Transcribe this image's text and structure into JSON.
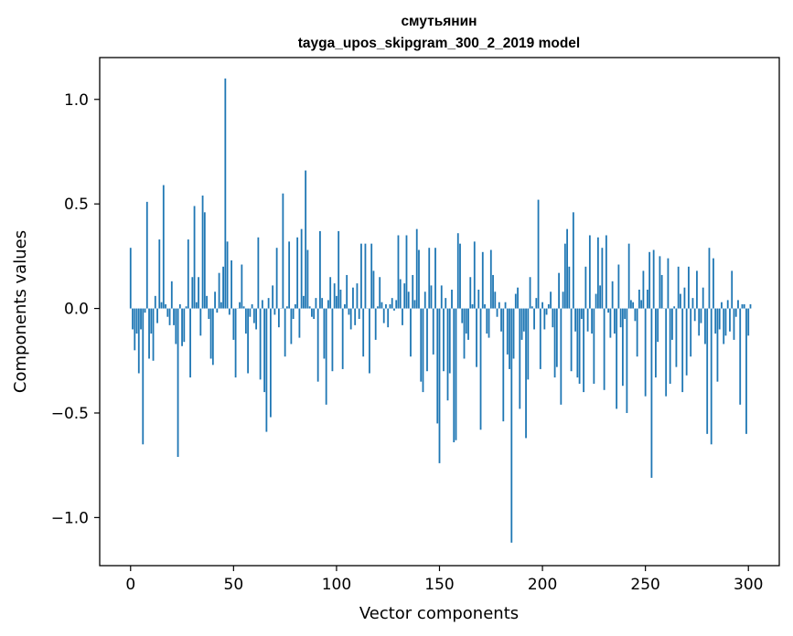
{
  "chart_data": {
    "type": "bar",
    "title": "смутьянин",
    "subtitle": "tayga_upos_skipgram_300_2_2019 model",
    "xlabel": "Vector components",
    "ylabel": "Components values",
    "xlim": [
      -15,
      315
    ],
    "ylim": [
      -1.23,
      1.2
    ],
    "xticks": [
      0,
      50,
      100,
      150,
      200,
      250,
      300
    ],
    "xtick_labels": [
      "0",
      "50",
      "100",
      "150",
      "200",
      "250",
      "300"
    ],
    "yticks": [
      -1.0,
      -0.5,
      0.0,
      0.5,
      1.0
    ],
    "ytick_labels": [
      "−1.0",
      "−0.5",
      "0.0",
      "0.5",
      "1.0"
    ],
    "bar_color": "#1f77b4",
    "grid": false,
    "legend": "none",
    "values": [
      0.29,
      -0.1,
      -0.2,
      -0.12,
      -0.31,
      -0.1,
      -0.65,
      -0.02,
      0.51,
      -0.24,
      -0.12,
      -0.25,
      0.06,
      -0.07,
      0.33,
      0.03,
      0.59,
      0.02,
      -0.04,
      -0.08,
      0.13,
      -0.08,
      -0.17,
      -0.71,
      0.02,
      -0.18,
      -0.16,
      0.01,
      0.33,
      -0.33,
      0.15,
      0.49,
      0.03,
      0.15,
      -0.13,
      0.54,
      0.46,
      0.06,
      -0.05,
      -0.24,
      -0.27,
      0.08,
      -0.02,
      0.17,
      0.03,
      0.2,
      1.1,
      0.32,
      -0.03,
      0.23,
      -0.15,
      -0.33,
      0.0,
      0.03,
      0.21,
      0.01,
      -0.12,
      -0.31,
      -0.04,
      0.02,
      -0.07,
      -0.1,
      0.34,
      -0.34,
      0.04,
      -0.4,
      -0.59,
      0.05,
      -0.52,
      0.11,
      -0.03,
      0.29,
      -0.09,
      0.0,
      0.55,
      -0.23,
      0.01,
      0.32,
      -0.17,
      -0.05,
      0.02,
      0.34,
      -0.14,
      0.38,
      0.06,
      0.66,
      0.28,
      0.01,
      -0.04,
      -0.05,
      0.05,
      -0.35,
      0.37,
      0.05,
      -0.24,
      -0.46,
      0.04,
      0.15,
      -0.3,
      0.12,
      0.06,
      0.37,
      0.09,
      -0.29,
      0.02,
      0.16,
      -0.03,
      -0.1,
      0.1,
      -0.08,
      0.12,
      -0.05,
      0.31,
      -0.23,
      0.31,
      0.0,
      -0.31,
      0.31,
      0.18,
      -0.15,
      0.01,
      0.15,
      0.03,
      -0.07,
      0.02,
      -0.09,
      0.02,
      0.05,
      -0.01,
      0.04,
      0.35,
      0.14,
      -0.08,
      0.12,
      0.35,
      0.08,
      -0.23,
      0.16,
      0.04,
      0.38,
      0.28,
      -0.35,
      -0.4,
      0.08,
      -0.3,
      0.29,
      0.11,
      -0.22,
      0.29,
      -0.55,
      -0.74,
      0.11,
      -0.3,
      0.05,
      -0.44,
      -0.31,
      0.09,
      -0.64,
      -0.63,
      0.36,
      0.31,
      -0.07,
      -0.24,
      -0.12,
      -0.15,
      0.15,
      0.02,
      0.32,
      -0.28,
      0.09,
      -0.58,
      0.27,
      0.02,
      -0.12,
      -0.14,
      0.28,
      0.16,
      0.08,
      -0.04,
      0.03,
      -0.11,
      -0.54,
      0.03,
      -0.22,
      -0.29,
      -1.12,
      -0.24,
      0.07,
      0.1,
      -0.48,
      -0.15,
      -0.11,
      -0.62,
      -0.34,
      0.15,
      0.01,
      -0.1,
      0.05,
      0.52,
      -0.29,
      0.03,
      -0.1,
      -0.03,
      0.02,
      0.08,
      -0.09,
      -0.33,
      -0.28,
      0.17,
      -0.46,
      0.08,
      0.31,
      0.38,
      0.2,
      -0.3,
      0.46,
      -0.11,
      -0.33,
      -0.36,
      -0.05,
      -0.4,
      0.2,
      -0.11,
      0.35,
      -0.12,
      -0.36,
      0.07,
      0.34,
      0.11,
      0.29,
      -0.39,
      0.35,
      -0.02,
      -0.14,
      0.13,
      -0.12,
      -0.48,
      0.21,
      -0.09,
      -0.37,
      -0.05,
      -0.5,
      0.31,
      0.04,
      0.03,
      -0.06,
      -0.23,
      0.09,
      0.04,
      0.18,
      -0.42,
      0.09,
      0.27,
      -0.81,
      0.28,
      -0.33,
      -0.16,
      0.25,
      0.16,
      0.0,
      -0.42,
      0.24,
      -0.36,
      -0.15,
      0.01,
      -0.28,
      0.2,
      0.07,
      -0.4,
      0.1,
      -0.32,
      0.2,
      -0.23,
      0.05,
      -0.06,
      0.18,
      -0.13,
      -0.07,
      0.1,
      -0.17,
      -0.6,
      0.29,
      -0.65,
      0.24,
      -0.12,
      -0.35,
      -0.1,
      0.03,
      -0.17,
      -0.13,
      0.04,
      -0.11,
      0.18,
      -0.15,
      -0.04,
      0.04,
      -0.46,
      0.02,
      0.02,
      -0.6,
      -0.13,
      0.02
    ]
  }
}
